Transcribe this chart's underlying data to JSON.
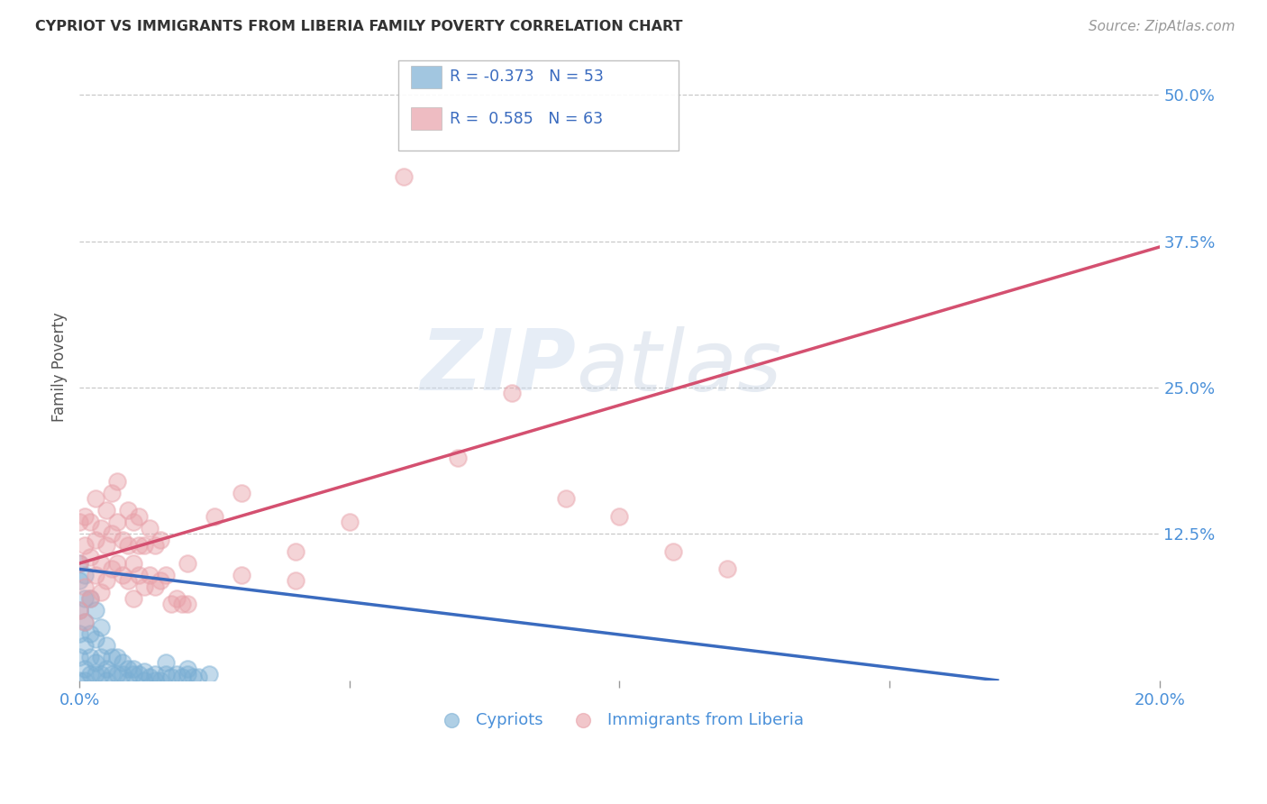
{
  "title": "CYPRIOT VS IMMIGRANTS FROM LIBERIA FAMILY POVERTY CORRELATION CHART",
  "source": "Source: ZipAtlas.com",
  "ylabel": "Family Poverty",
  "ytick_vals": [
    0.125,
    0.25,
    0.375,
    0.5
  ],
  "ytick_labels": [
    "12.5%",
    "25.0%",
    "37.5%",
    "50.0%"
  ],
  "xlim": [
    0.0,
    0.2
  ],
  "ylim": [
    0.0,
    0.535
  ],
  "legend_blue_r": "-0.373",
  "legend_blue_n": "53",
  "legend_pink_r": "0.585",
  "legend_pink_n": "63",
  "blue_color": "#7bafd4",
  "pink_color": "#e8a0a8",
  "blue_line_color": "#3a6bbf",
  "pink_line_color": "#d45070",
  "background_color": "#ffffff",
  "blue_line_x": [
    0.0,
    0.17
  ],
  "blue_line_y": [
    0.095,
    0.0
  ],
  "pink_line_x": [
    0.0,
    0.2
  ],
  "pink_line_y": [
    0.1,
    0.37
  ],
  "cypriot_x": [
    0.0,
    0.0,
    0.0,
    0.0,
    0.0,
    0.0,
    0.001,
    0.001,
    0.001,
    0.001,
    0.001,
    0.001,
    0.002,
    0.002,
    0.002,
    0.002,
    0.003,
    0.003,
    0.003,
    0.003,
    0.004,
    0.004,
    0.004,
    0.005,
    0.005,
    0.005,
    0.006,
    0.006,
    0.007,
    0.007,
    0.008,
    0.008,
    0.009,
    0.009,
    0.01,
    0.01,
    0.011,
    0.012,
    0.012,
    0.013,
    0.014,
    0.014,
    0.015,
    0.016,
    0.016,
    0.017,
    0.018,
    0.019,
    0.02,
    0.02,
    0.021,
    0.022,
    0.024
  ],
  "cypriot_y": [
    0.0,
    0.02,
    0.04,
    0.06,
    0.085,
    0.1,
    0.0,
    0.01,
    0.03,
    0.05,
    0.07,
    0.09,
    0.005,
    0.02,
    0.04,
    0.07,
    0.005,
    0.015,
    0.035,
    0.06,
    0.005,
    0.02,
    0.045,
    0.0,
    0.01,
    0.03,
    0.005,
    0.02,
    0.005,
    0.02,
    0.005,
    0.015,
    0.0,
    0.01,
    0.005,
    0.01,
    0.005,
    0.0,
    0.008,
    0.003,
    0.0,
    0.005,
    0.0,
    0.005,
    0.015,
    0.003,
    0.005,
    0.003,
    0.005,
    0.01,
    0.003,
    0.003,
    0.005
  ],
  "liberia_x": [
    0.0,
    0.0,
    0.0,
    0.001,
    0.001,
    0.001,
    0.001,
    0.002,
    0.002,
    0.002,
    0.003,
    0.003,
    0.003,
    0.004,
    0.004,
    0.004,
    0.005,
    0.005,
    0.005,
    0.006,
    0.006,
    0.006,
    0.007,
    0.007,
    0.007,
    0.008,
    0.008,
    0.009,
    0.009,
    0.009,
    0.01,
    0.01,
    0.01,
    0.011,
    0.011,
    0.011,
    0.012,
    0.012,
    0.013,
    0.013,
    0.014,
    0.014,
    0.015,
    0.015,
    0.016,
    0.017,
    0.018,
    0.019,
    0.02,
    0.02,
    0.025,
    0.03,
    0.03,
    0.04,
    0.04,
    0.05,
    0.06,
    0.07,
    0.08,
    0.09,
    0.1,
    0.11,
    0.12
  ],
  "liberia_y": [
    0.06,
    0.1,
    0.135,
    0.05,
    0.08,
    0.115,
    0.14,
    0.07,
    0.105,
    0.135,
    0.09,
    0.12,
    0.155,
    0.075,
    0.1,
    0.13,
    0.085,
    0.115,
    0.145,
    0.095,
    0.125,
    0.16,
    0.1,
    0.135,
    0.17,
    0.09,
    0.12,
    0.085,
    0.115,
    0.145,
    0.07,
    0.1,
    0.135,
    0.09,
    0.115,
    0.14,
    0.08,
    0.115,
    0.09,
    0.13,
    0.08,
    0.115,
    0.085,
    0.12,
    0.09,
    0.065,
    0.07,
    0.065,
    0.065,
    0.1,
    0.14,
    0.09,
    0.16,
    0.085,
    0.11,
    0.135,
    0.43,
    0.19,
    0.245,
    0.155,
    0.14,
    0.11,
    0.095
  ]
}
